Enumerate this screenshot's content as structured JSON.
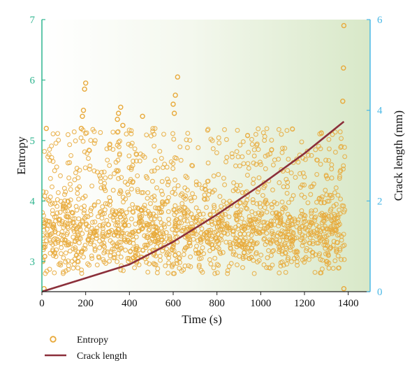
{
  "chart_data": {
    "type": "scatter",
    "xlabel": "Time (s)",
    "ylabel_left": "Entropy",
    "ylabel_right": "Crack length (mm)",
    "xlim": [
      0,
      1500
    ],
    "ylim_left": [
      2.5,
      7
    ],
    "ylim_right": [
      0,
      6
    ],
    "x_ticks": [
      "0",
      "200",
      "400",
      "600",
      "800",
      "1000",
      "1200",
      "1400"
    ],
    "y_left_ticks": [
      "3",
      "4",
      "5",
      "6",
      "7"
    ],
    "y_right_ticks": [
      "0",
      "2",
      "4",
      "6"
    ],
    "legend_position": "bottom-left",
    "colors": {
      "entropy": "#E8A93A",
      "crack": "#8B2F3A",
      "left_axis": "#2FB58F",
      "right_axis": "#4AB8E6",
      "background_end": "#D8E8C8"
    },
    "series": [
      {
        "name": "Entropy",
        "kind": "scatter",
        "axis": "left",
        "approx_band": {
          "x_range": [
            0,
            1385
          ],
          "y_low": 2.8,
          "y_high": 5.2,
          "dense_center": 3.5
        },
        "outliers": [
          [
            10,
            2.55
          ],
          [
            20,
            5.2
          ],
          [
            180,
            5.2
          ],
          [
            190,
            5.5
          ],
          [
            195,
            5.85
          ],
          [
            200,
            5.95
          ],
          [
            185,
            5.4
          ],
          [
            350,
            5.45
          ],
          [
            360,
            5.55
          ],
          [
            345,
            5.35
          ],
          [
            370,
            5.25
          ],
          [
            460,
            5.4
          ],
          [
            600,
            5.6
          ],
          [
            610,
            5.75
          ],
          [
            620,
            6.05
          ],
          [
            605,
            5.45
          ],
          [
            1375,
            5.65
          ],
          [
            1378,
            6.2
          ],
          [
            1380,
            6.9
          ],
          [
            1380,
            2.55
          ]
        ]
      },
      {
        "name": "Crack length",
        "kind": "line",
        "axis": "right",
        "x": [
          0,
          200,
          400,
          600,
          800,
          1000,
          1200,
          1380
        ],
        "y": [
          0,
          0.3,
          0.6,
          1.1,
          1.7,
          2.35,
          3.05,
          3.75
        ]
      }
    ]
  }
}
